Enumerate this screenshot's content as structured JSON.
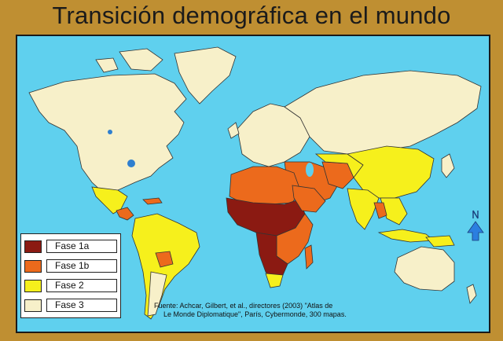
{
  "title": "Transición demográfica en el mundo",
  "legend": {
    "items": [
      {
        "label": "Fase 1a",
        "color": "#8b1a12"
      },
      {
        "label": "Fase 1b",
        "color": "#ec6a1c"
      },
      {
        "label": "Fase 2",
        "color": "#f6f01c"
      },
      {
        "label": "Fase 3",
        "color": "#f7f0c9"
      }
    ]
  },
  "source": {
    "line1": "Fuente: Achcar, Gilbert, et al., directores (2003) \"Atlas de",
    "line2": "Le Monde Diplomatique\", París, Cybermonde, 300 mapas."
  },
  "colors": {
    "ocean": "#5fd0ee",
    "frame": "#bf8f32",
    "lake": "#2f7fcf",
    "compass": "#2b7fe0"
  },
  "icons": {
    "north_arrow": "compass-north-arrow-icon"
  }
}
